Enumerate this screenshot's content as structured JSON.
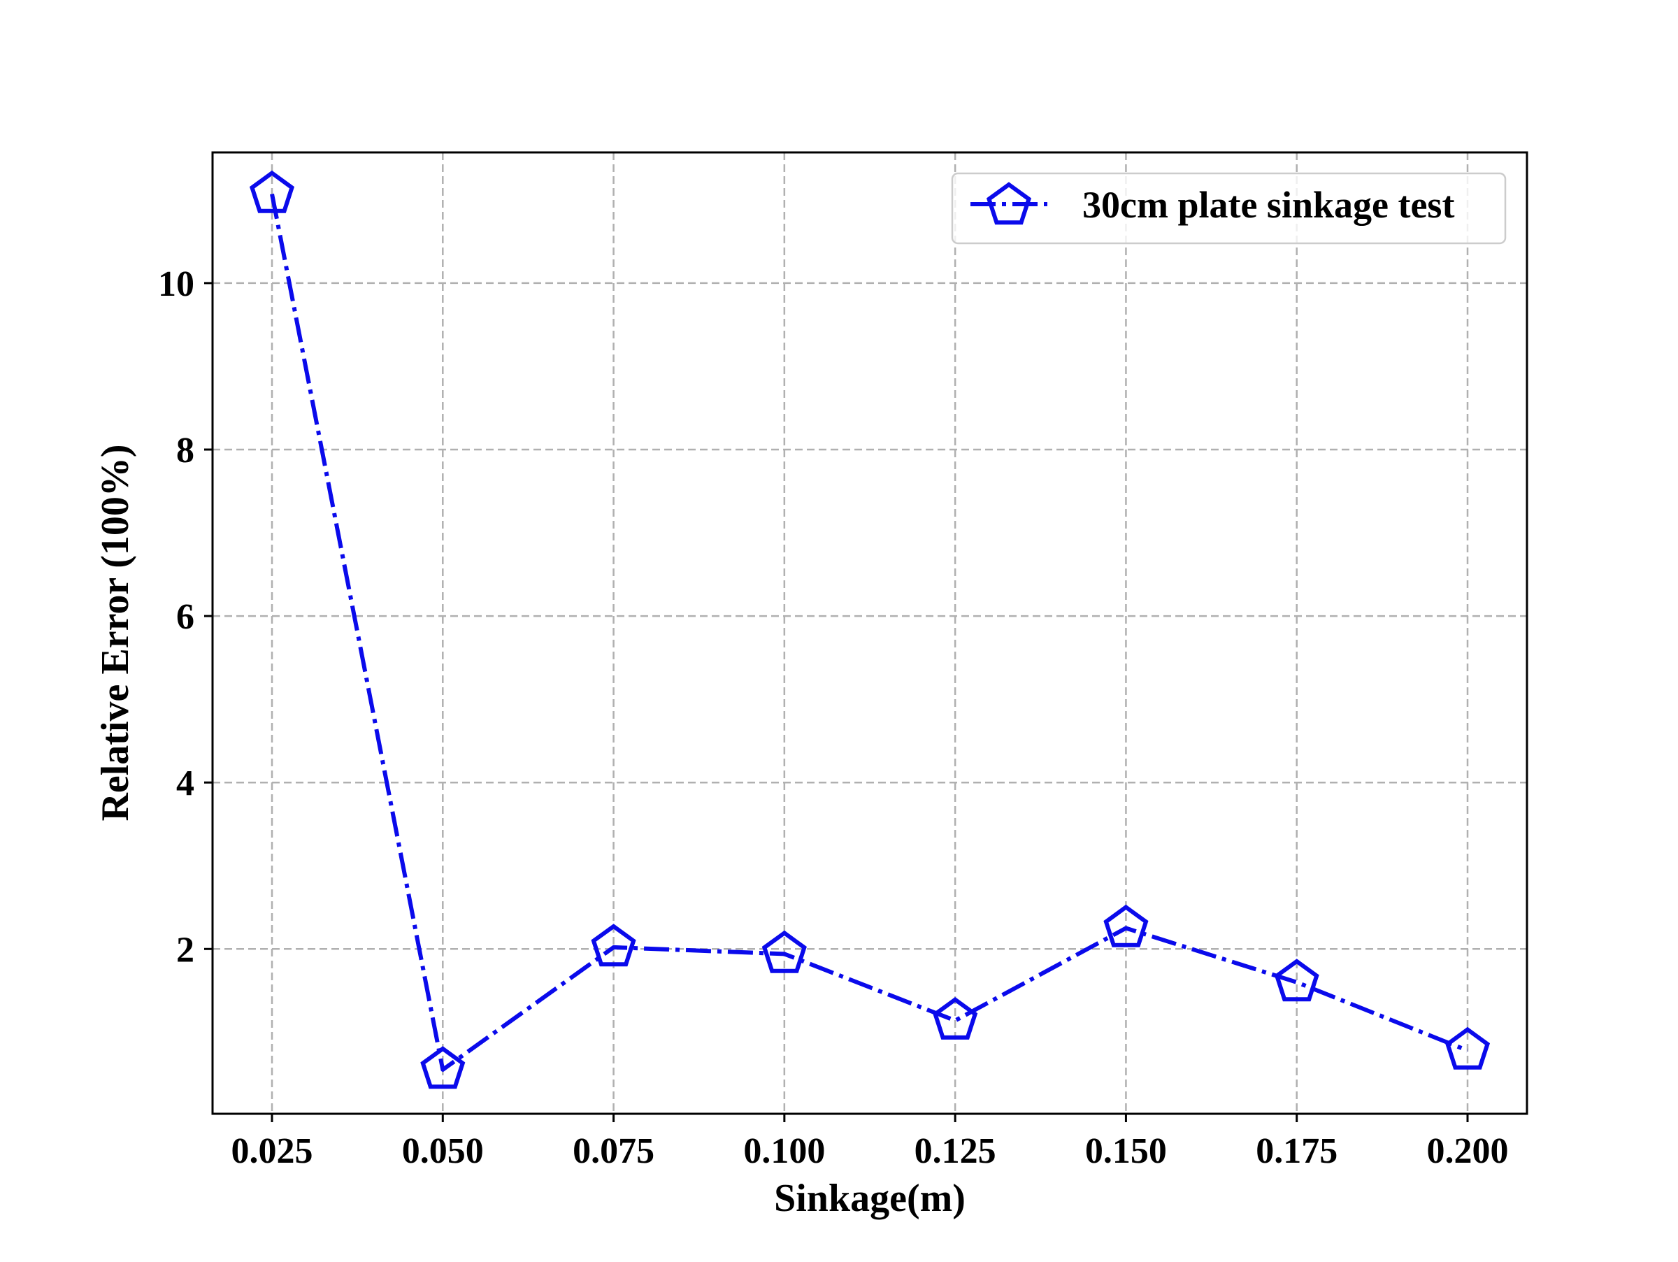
{
  "chart_data": {
    "type": "line",
    "xlabel": "Sinkage(m)",
    "ylabel": "Relative Error (100%)",
    "x": [
      0.025,
      0.05,
      0.075,
      0.1,
      0.125,
      0.15,
      0.175,
      0.2
    ],
    "x_tick_labels": [
      "0.025",
      "0.050",
      "0.075",
      "0.100",
      "0.125",
      "0.150",
      "0.175",
      "0.200"
    ],
    "y_ticks": [
      2,
      4,
      6,
      8,
      10
    ],
    "y_tick_labels": [
      "2",
      "4",
      "6",
      "8",
      "10"
    ],
    "xlim": [
      0.0163,
      0.2087
    ],
    "ylim": [
      0.02,
      11.57
    ],
    "grid": true,
    "legend_position": "top-right",
    "series": [
      {
        "name": "30cm plate sinkage test",
        "color": "#0a0aeb",
        "line_style": "dash-dot",
        "marker": "pentagon-open",
        "values": [
          11.07,
          0.55,
          2.02,
          1.94,
          1.14,
          2.25,
          1.6,
          0.78
        ]
      }
    ]
  }
}
